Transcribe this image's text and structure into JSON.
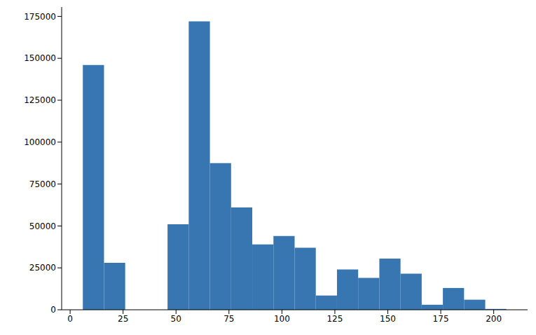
{
  "chart_data": {
    "type": "histogram",
    "bins": [
      6,
      16,
      26,
      36,
      46,
      56,
      66,
      76,
      86,
      96,
      106,
      116,
      126,
      136,
      146,
      156,
      166,
      176,
      186,
      196,
      206
    ],
    "counts": [
      146000,
      28000,
      0,
      0,
      51000,
      172000,
      87500,
      61000,
      39000,
      44000,
      37000,
      8500,
      24000,
      19000,
      30500,
      21500,
      3000,
      13000,
      6000,
      500
    ],
    "color": "#3776b0",
    "xlim": [
      -4,
      216
    ],
    "xticks": [
      0,
      25,
      50,
      75,
      100,
      125,
      150,
      175,
      200
    ],
    "ylim": [
      0,
      180600
    ],
    "yticks": [
      0,
      25000,
      50000,
      75000,
      100000,
      125000,
      150000,
      175000
    ],
    "grid": false
  }
}
